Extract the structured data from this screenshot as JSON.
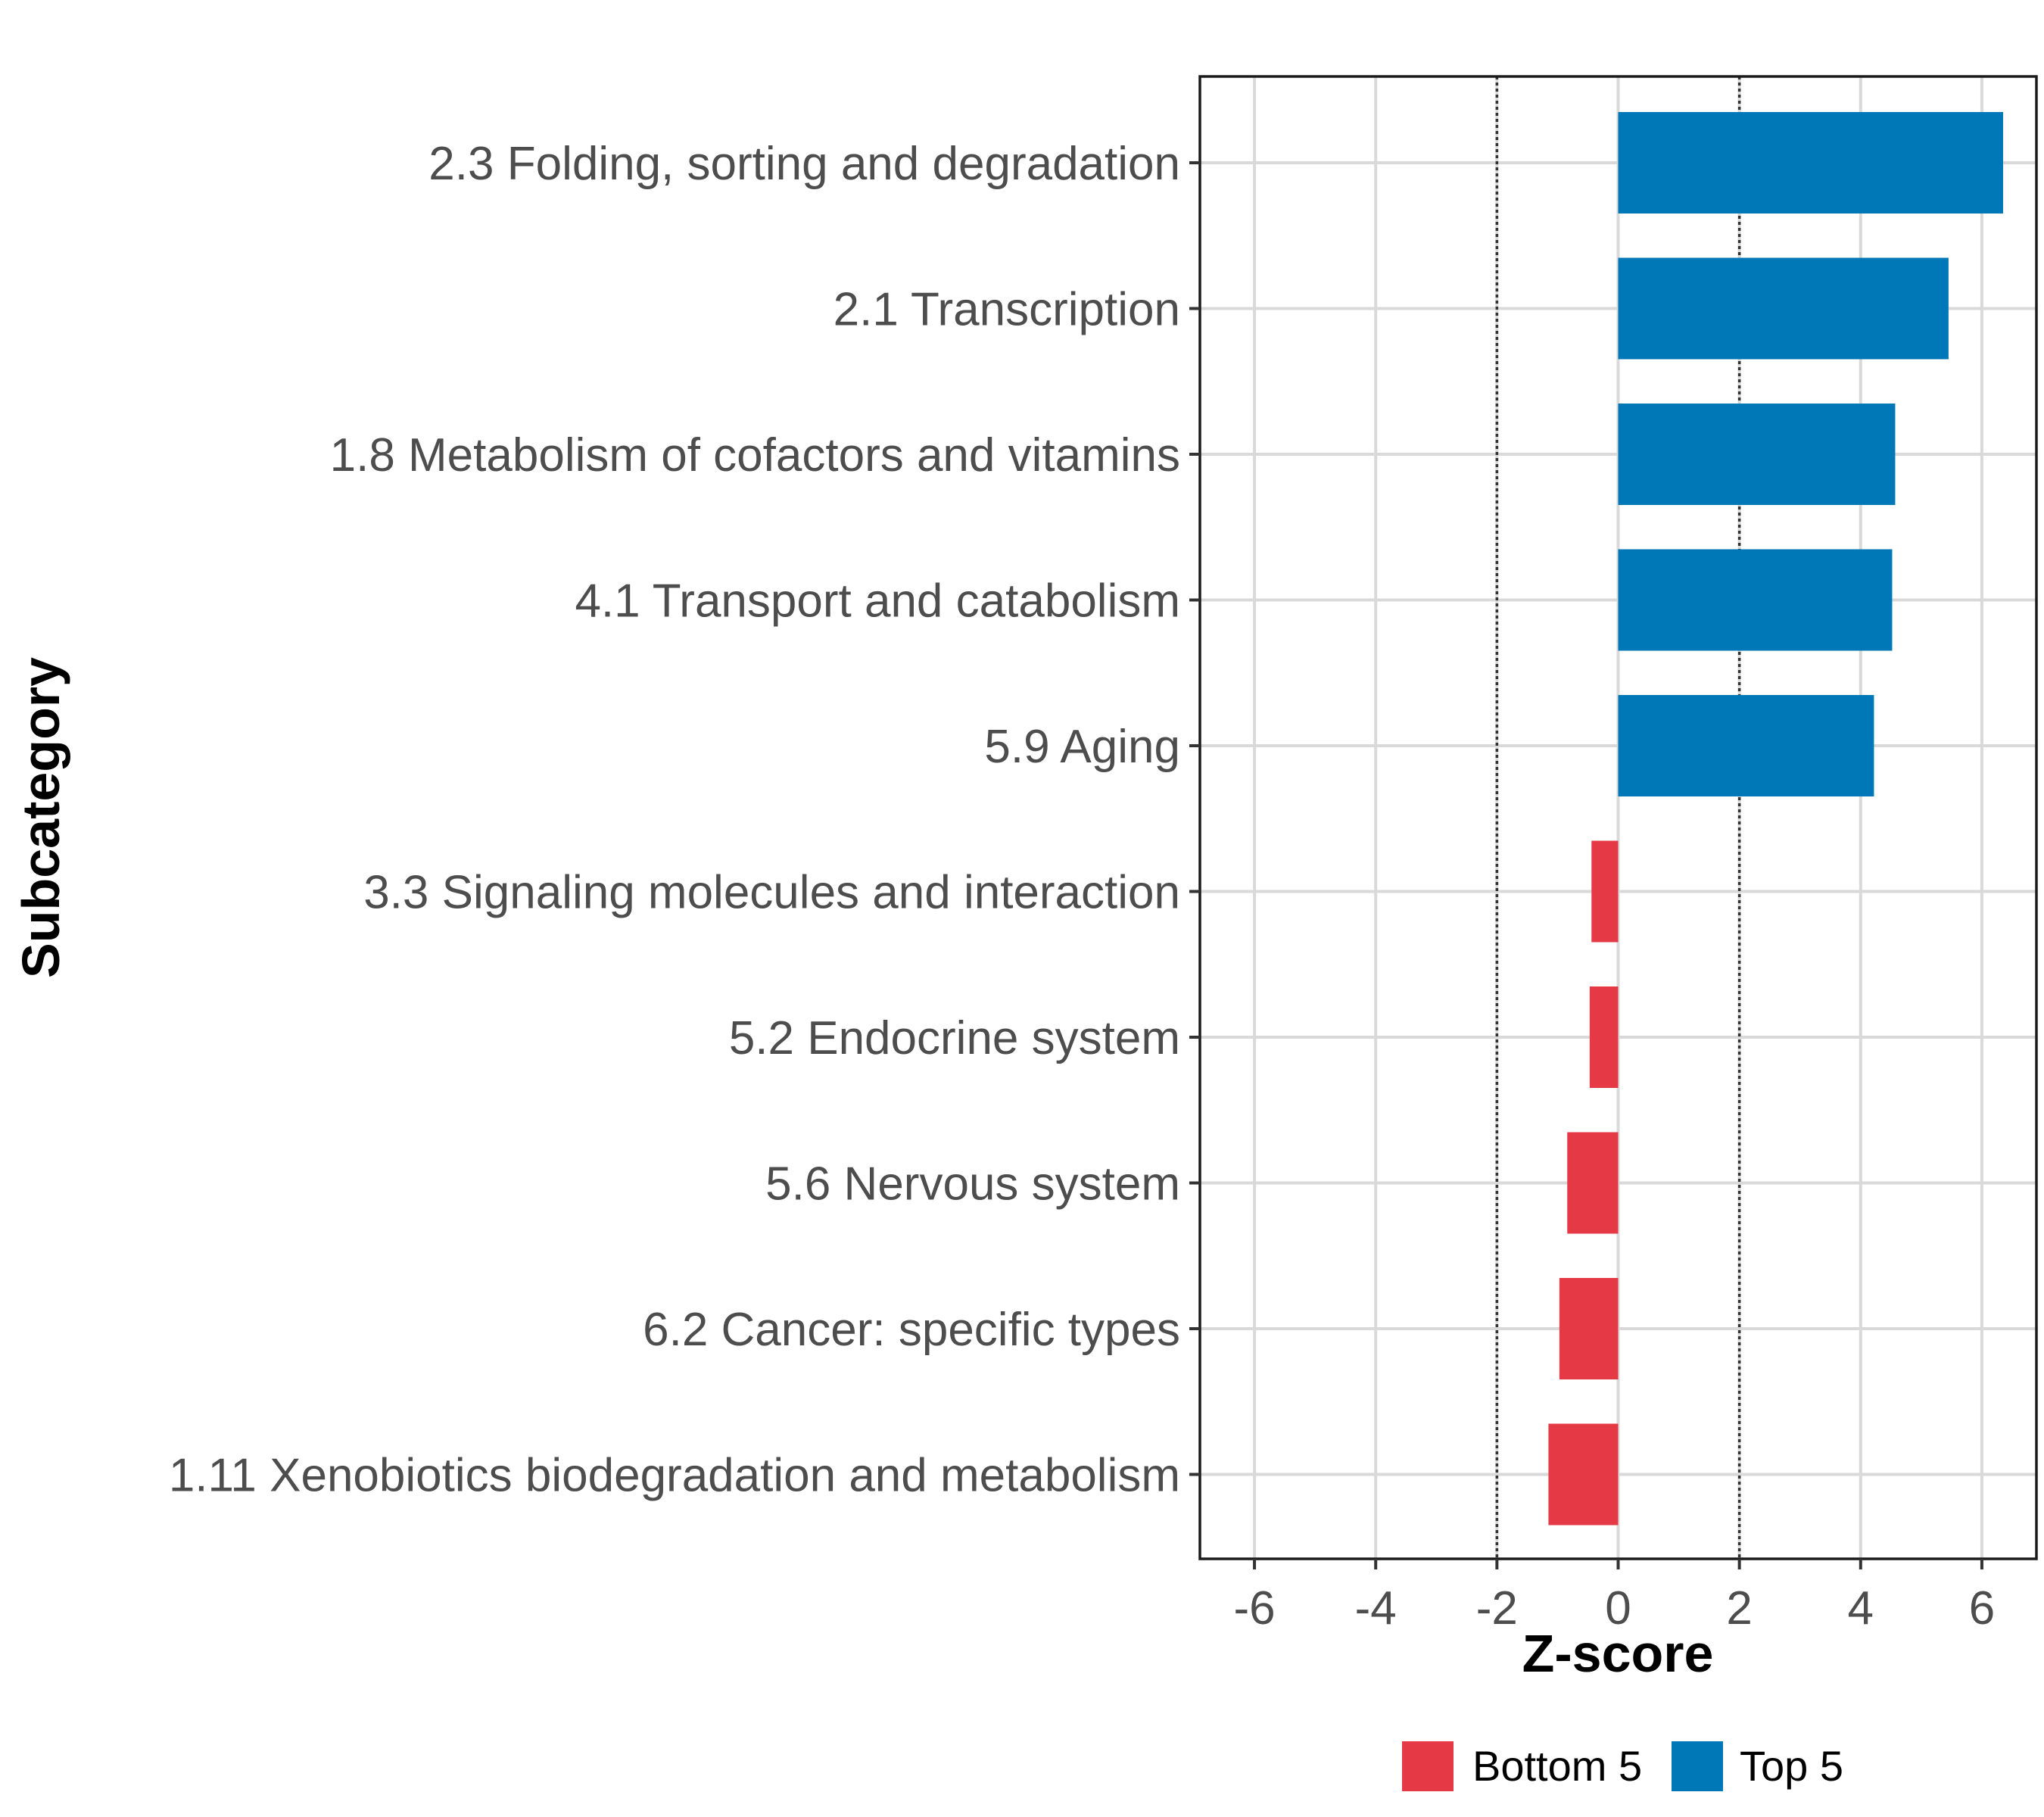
{
  "chart_data": {
    "type": "bar",
    "orientation": "horizontal",
    "title": "",
    "xlabel": "Z-score",
    "ylabel": "Subcategory",
    "xlim": [
      -6.9,
      6.9
    ],
    "xticks": [
      -6,
      -4,
      -2,
      0,
      2,
      4,
      6
    ],
    "reference_lines": [
      -2,
      2
    ],
    "grid": true,
    "legend_position": "bottom",
    "legend": [
      {
        "name": "Bottom 5",
        "color": "#E63946"
      },
      {
        "name": "Top 5",
        "color": "#0077B6"
      }
    ],
    "bars": [
      {
        "label": "2.3 Folding, sorting and degradation",
        "value": 6.35,
        "group": "Top 5"
      },
      {
        "label": "2.1 Transcription",
        "value": 5.45,
        "group": "Top 5"
      },
      {
        "label": "1.8 Metabolism of cofactors and vitamins",
        "value": 4.57,
        "group": "Top 5"
      },
      {
        "label": "4.1 Transport and catabolism",
        "value": 4.52,
        "group": "Top 5"
      },
      {
        "label": "5.9 Aging",
        "value": 4.22,
        "group": "Top 5"
      },
      {
        "label": "3.3 Signaling molecules and interaction",
        "value": -0.44,
        "group": "Bottom 5"
      },
      {
        "label": "5.2 Endocrine system",
        "value": -0.47,
        "group": "Bottom 5"
      },
      {
        "label": "5.6 Nervous system",
        "value": -0.84,
        "group": "Bottom 5"
      },
      {
        "label": "6.2 Cancer: specific types",
        "value": -0.97,
        "group": "Bottom 5"
      },
      {
        "label": "1.11 Xenobiotics biodegradation and metabolism",
        "value": -1.15,
        "group": "Bottom 5"
      }
    ]
  }
}
